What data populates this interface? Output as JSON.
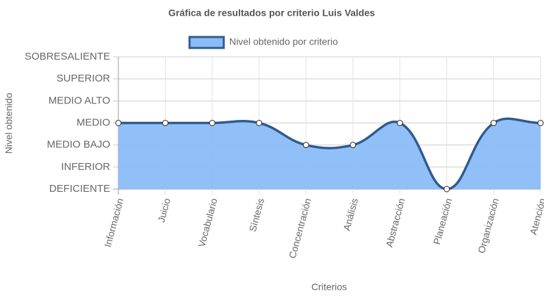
{
  "chart_data": {
    "type": "line",
    "title": "Gráfica de resultados por criterio Luis Valdes",
    "x_label": "Criterios",
    "y_label": "Nivel obtenido",
    "categories": [
      "Información",
      "Juicio",
      "Vocabulario",
      "Síntesis",
      "Concentración",
      "Análisis",
      "Abstracción",
      "Planeación",
      "Organización",
      "Atención"
    ],
    "series": [
      {
        "name": "Nivel obtenido por criterio",
        "color": "#2f5a8e",
        "fill": "#8bbcf7",
        "values": [
          3,
          3,
          3,
          3,
          2,
          2,
          3,
          0,
          3,
          3
        ]
      }
    ],
    "ylim": [
      0,
      6
    ],
    "yticks": [
      {
        "value": 0,
        "label": "DEFICIENTE"
      },
      {
        "value": 1,
        "label": "INFERIOR"
      },
      {
        "value": 2,
        "label": "MEDIO BAJO"
      },
      {
        "value": 3,
        "label": "MEDIO"
      },
      {
        "value": 4,
        "label": "MEDIO ALTO"
      },
      {
        "value": 5,
        "label": "SUPERIOR"
      },
      {
        "value": 6,
        "label": "SOBRESALIENTE"
      }
    ],
    "grid": true,
    "legend": "top"
  }
}
